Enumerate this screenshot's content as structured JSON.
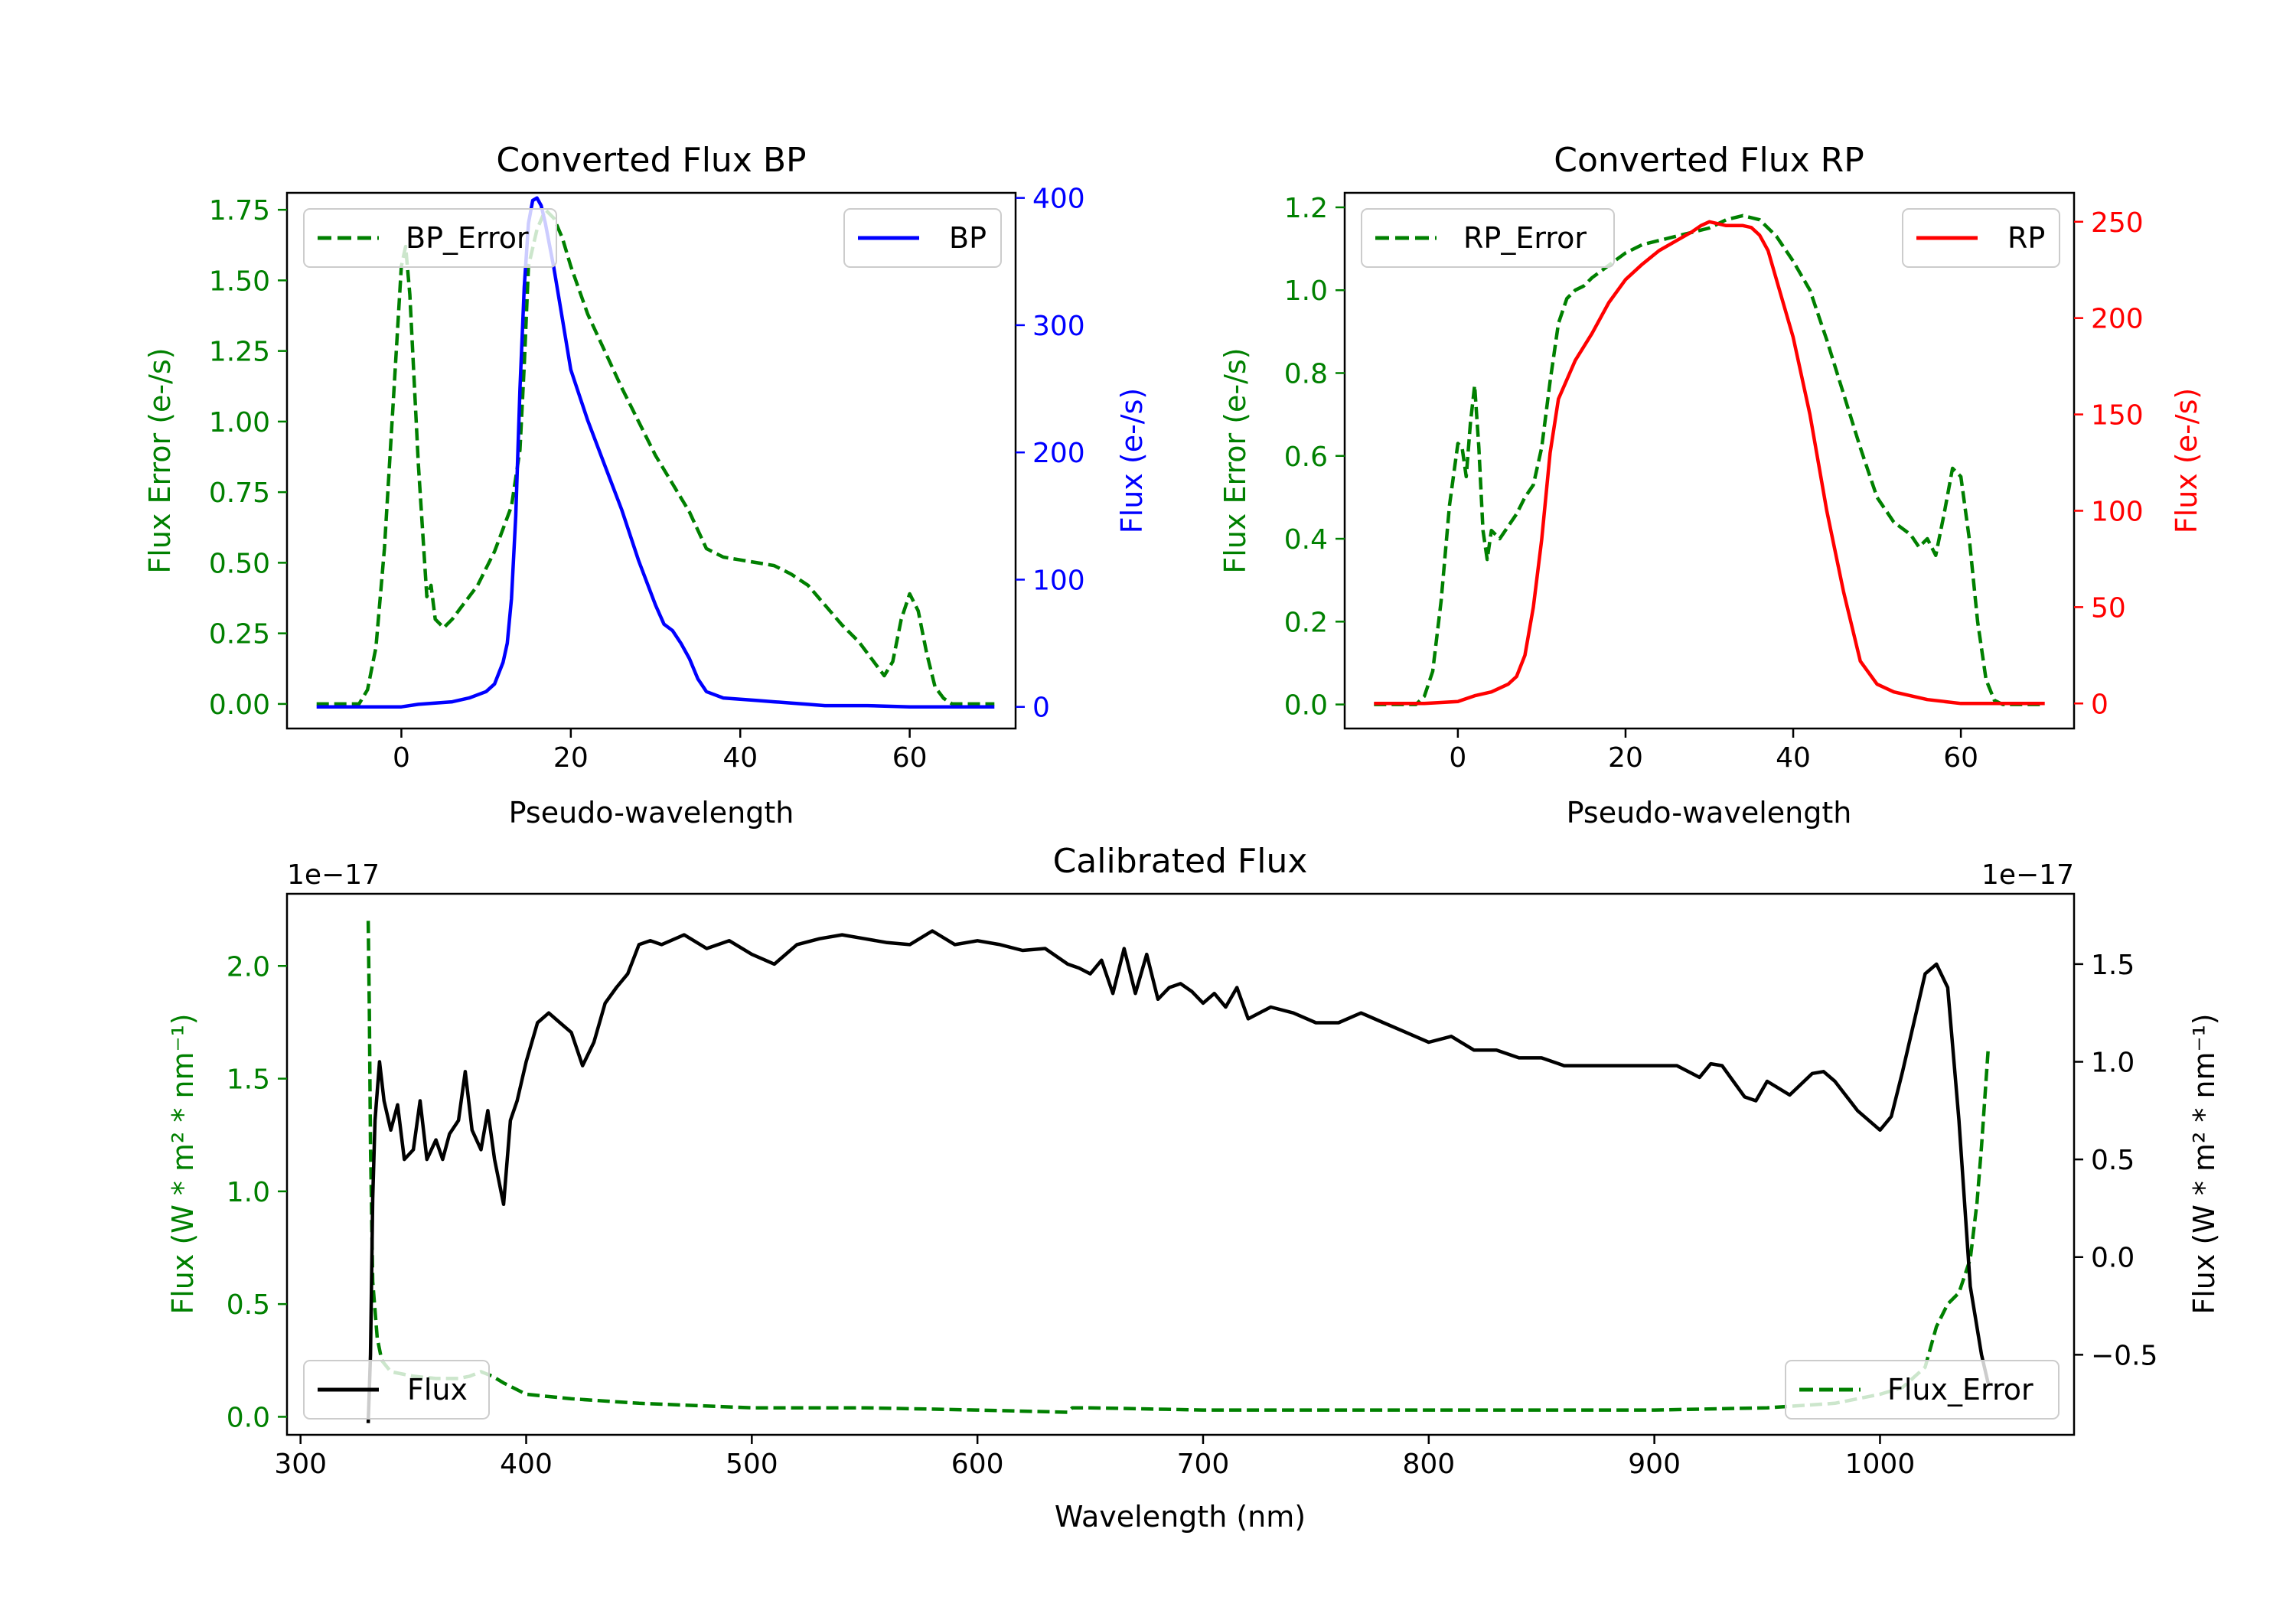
{
  "colors": {
    "green": "#008000",
    "blue": "#0000ff",
    "red": "#ff0000",
    "black": "#000000"
  },
  "chart_data": [
    {
      "id": "bp",
      "type": "line",
      "title": "Converted Flux BP",
      "xlabel": "Pseudo-wavelength",
      "ylabel_left": "Flux Error (e-/s)",
      "ylabel_right": "Flux (e-/s)",
      "xlim": [
        -13.5,
        72.5
      ],
      "ylim_left": [
        -0.087,
        1.81
      ],
      "ylim_right": [
        -17,
        404
      ],
      "xticks": [
        0,
        20,
        40,
        60
      ],
      "xtick_labels": [
        "0",
        "20",
        "40",
        "60"
      ],
      "yticks_left": [
        0,
        0.25,
        0.5,
        0.75,
        1.0,
        1.25,
        1.5,
        1.75
      ],
      "ytick_labels_left": [
        "0.00",
        "0.25",
        "0.50",
        "0.75",
        "1.00",
        "1.25",
        "1.50",
        "1.75"
      ],
      "yticks_right": [
        0,
        100,
        200,
        300,
        400
      ],
      "ytick_labels_right": [
        "0",
        "100",
        "200",
        "300",
        "400"
      ],
      "legend_left": "BP_Error",
      "legend_right": "BP",
      "series": [
        {
          "name": "BP_Error",
          "axis": "left",
          "style": "dashed",
          "color": "#008000",
          "x": [
            -10,
            -5,
            -4,
            -3,
            -2,
            -1,
            0,
            0.5,
            1,
            2,
            3,
            3.5,
            4,
            5,
            6,
            7,
            8,
            9,
            10,
            11,
            12,
            13,
            14,
            14.5,
            15,
            16,
            17,
            18,
            19,
            20,
            22,
            24,
            26,
            28,
            30,
            32,
            34,
            36,
            38,
            40,
            42,
            44,
            46,
            48,
            50,
            52,
            54,
            55,
            56,
            57,
            58,
            59,
            60,
            61,
            62,
            63,
            64,
            65,
            66,
            70
          ],
          "y": [
            0.0,
            0.0,
            0.05,
            0.2,
            0.55,
            1.05,
            1.55,
            1.62,
            1.45,
            0.85,
            0.38,
            0.42,
            0.3,
            0.27,
            0.3,
            0.34,
            0.38,
            0.42,
            0.48,
            0.54,
            0.62,
            0.7,
            0.9,
            1.2,
            1.55,
            1.68,
            1.75,
            1.72,
            1.65,
            1.55,
            1.38,
            1.25,
            1.12,
            1.0,
            0.88,
            0.78,
            0.68,
            0.55,
            0.52,
            0.51,
            0.5,
            0.49,
            0.46,
            0.42,
            0.35,
            0.28,
            0.22,
            0.18,
            0.14,
            0.1,
            0.15,
            0.3,
            0.39,
            0.33,
            0.18,
            0.06,
            0.02,
            0.0,
            0.0,
            0.0
          ]
        },
        {
          "name": "BP",
          "axis": "right",
          "style": "solid",
          "color": "#0000ff",
          "x": [
            -10,
            0,
            2,
            4,
            6,
            8,
            10,
            11,
            12,
            12.5,
            13,
            13.5,
            14,
            14.5,
            15,
            15.5,
            16,
            16.5,
            17,
            18,
            19,
            20,
            21,
            22,
            24,
            26,
            28,
            30,
            31,
            32,
            33,
            34,
            35,
            36,
            38,
            40,
            42,
            44,
            46,
            48,
            50,
            55,
            60,
            65,
            70
          ],
          "y": [
            0,
            0,
            2,
            3,
            4,
            7,
            12,
            18,
            35,
            50,
            85,
            150,
            250,
            330,
            380,
            398,
            400,
            394,
            380,
            345,
            305,
            265,
            245,
            225,
            190,
            155,
            115,
            80,
            65,
            60,
            50,
            38,
            22,
            12,
            7,
            6,
            5,
            4,
            3,
            2,
            1,
            1,
            0,
            0,
            0
          ]
        }
      ]
    },
    {
      "id": "rp",
      "type": "line",
      "title": "Converted Flux RP",
      "xlabel": "Pseudo-wavelength",
      "ylabel_left": "Flux Error (e-/s)",
      "ylabel_right": "Flux (e-/s)",
      "xlim": [
        -13.5,
        73.5
      ],
      "ylim_left": [
        -0.058,
        1.235
      ],
      "ylim_right": [
        -13,
        265
      ],
      "xticks": [
        0,
        20,
        40,
        60
      ],
      "xtick_labels": [
        "0",
        "20",
        "40",
        "60"
      ],
      "yticks_left": [
        0,
        0.2,
        0.4,
        0.6,
        0.8,
        1.0,
        1.2
      ],
      "ytick_labels_left": [
        "0.0",
        "0.2",
        "0.4",
        "0.6",
        "0.8",
        "1.0",
        "1.2"
      ],
      "yticks_right": [
        0,
        50,
        100,
        150,
        200,
        250
      ],
      "ytick_labels_right": [
        "0",
        "50",
        "100",
        "150",
        "200",
        "250"
      ],
      "legend_left": "RP_Error",
      "legend_right": "RP",
      "series": [
        {
          "name": "RP_Error",
          "axis": "left",
          "style": "dashed",
          "color": "#008000",
          "x": [
            -10,
            -5,
            -4,
            -3,
            -2,
            -1,
            0,
            0.5,
            1,
            1.5,
            2,
            2.5,
            3,
            3.5,
            4,
            5,
            6,
            7,
            8,
            9,
            10,
            11,
            12,
            13,
            14,
            15,
            16,
            18,
            20,
            22,
            24,
            26,
            28,
            30,
            32,
            34,
            36,
            38,
            40,
            42,
            44,
            46,
            48,
            50,
            52,
            54,
            55,
            56,
            57,
            58,
            59,
            60,
            61,
            62,
            63,
            64,
            65,
            70
          ],
          "y": [
            0.0,
            0.0,
            0.02,
            0.08,
            0.25,
            0.48,
            0.63,
            0.62,
            0.55,
            0.68,
            0.77,
            0.62,
            0.42,
            0.35,
            0.42,
            0.4,
            0.43,
            0.46,
            0.5,
            0.53,
            0.62,
            0.78,
            0.92,
            0.98,
            1.0,
            1.01,
            1.03,
            1.06,
            1.09,
            1.11,
            1.12,
            1.13,
            1.14,
            1.15,
            1.17,
            1.18,
            1.17,
            1.13,
            1.07,
            1.0,
            0.88,
            0.75,
            0.62,
            0.5,
            0.44,
            0.41,
            0.38,
            0.4,
            0.36,
            0.46,
            0.57,
            0.55,
            0.4,
            0.2,
            0.06,
            0.01,
            0.0,
            0.0
          ]
        },
        {
          "name": "RP",
          "axis": "right",
          "style": "solid",
          "color": "#ff0000",
          "x": [
            -10,
            -4,
            0,
            2,
            4,
            6,
            7,
            8,
            9,
            10,
            11,
            12,
            13,
            14,
            16,
            18,
            20,
            22,
            24,
            26,
            28,
            29,
            30,
            31,
            32,
            33,
            34,
            35,
            36,
            37,
            38,
            40,
            42,
            44,
            46,
            48,
            50,
            52,
            54,
            56,
            58,
            60,
            62,
            70
          ],
          "y": [
            0,
            0,
            1,
            4,
            6,
            10,
            14,
            25,
            50,
            85,
            130,
            158,
            168,
            178,
            192,
            208,
            220,
            228,
            235,
            240,
            245,
            248,
            250,
            249,
            248,
            248,
            248,
            247,
            243,
            235,
            220,
            190,
            150,
            100,
            58,
            22,
            10,
            6,
            4,
            2,
            1,
            0,
            0,
            0
          ]
        }
      ]
    },
    {
      "id": "cal",
      "type": "line",
      "title": "Calibrated Flux",
      "xlabel": "Wavelength (nm)",
      "ylabel_left": "Flux (W * m² * nm⁻¹)",
      "ylabel_right": "Flux (W * m² * nm⁻¹)",
      "offset_left": "1e−17",
      "offset_right": "1e−17",
      "xlim": [
        294,
        1086
      ],
      "ylim_left": [
        -0.08,
        2.32
      ],
      "ylim_right": [
        -0.91,
        1.86
      ],
      "xticks": [
        300,
        400,
        500,
        600,
        700,
        800,
        900,
        1000
      ],
      "xtick_labels": [
        "300",
        "400",
        "500",
        "600",
        "700",
        "800",
        "900",
        "1000"
      ],
      "yticks_left": [
        0,
        0.5,
        1.0,
        1.5,
        2.0
      ],
      "ytick_labels_left": [
        "0.0",
        "0.5",
        "1.0",
        "1.5",
        "2.0"
      ],
      "yticks_right": [
        -0.5,
        0,
        0.5,
        1.0,
        1.5
      ],
      "ytick_labels_right": [
        "−0.5",
        "0.0",
        "0.5",
        "1.0",
        "1.5"
      ],
      "legend_left": "Flux",
      "legend_right": "Flux_Error",
      "series": [
        {
          "name": "Flux_Error",
          "axis": "left",
          "style": "dashed",
          "color": "#008000",
          "x": [
            330,
            330.5,
            331,
            332,
            334,
            336,
            340,
            350,
            360,
            370,
            375,
            380,
            385,
            390,
            400,
            420,
            450,
            500,
            550,
            600,
            640,
            642,
            650,
            700,
            800,
            900,
            950,
            980,
            1000,
            1010,
            1020,
            1025,
            1030,
            1035,
            1040,
            1043,
            1045,
            1048
          ],
          "y": [
            2.2,
            1.8,
            1.2,
            0.6,
            0.35,
            0.25,
            0.2,
            0.18,
            0.17,
            0.17,
            0.18,
            0.2,
            0.18,
            0.15,
            0.1,
            0.08,
            0.06,
            0.04,
            0.04,
            0.03,
            0.02,
            0.04,
            0.04,
            0.03,
            0.03,
            0.03,
            0.04,
            0.06,
            0.1,
            0.13,
            0.22,
            0.4,
            0.5,
            0.55,
            0.7,
            0.95,
            1.2,
            1.64
          ]
        },
        {
          "name": "Flux",
          "axis": "right",
          "style": "solid",
          "color": "#000000",
          "x": [
            330,
            331,
            332,
            333,
            335,
            337,
            340,
            343,
            346,
            350,
            353,
            356,
            360,
            363,
            366,
            370,
            373,
            376,
            380,
            383,
            386,
            390,
            393,
            396,
            400,
            405,
            410,
            415,
            420,
            425,
            430,
            435,
            440,
            445,
            450,
            455,
            460,
            470,
            480,
            490,
            500,
            510,
            520,
            530,
            540,
            550,
            560,
            570,
            580,
            590,
            600,
            610,
            620,
            630,
            640,
            645,
            650,
            655,
            660,
            665,
            670,
            675,
            680,
            685,
            690,
            695,
            700,
            705,
            710,
            715,
            720,
            730,
            740,
            750,
            760,
            770,
            780,
            790,
            800,
            810,
            820,
            830,
            840,
            850,
            860,
            870,
            880,
            890,
            900,
            910,
            920,
            925,
            930,
            935,
            940,
            945,
            950,
            960,
            970,
            975,
            980,
            990,
            1000,
            1005,
            1010,
            1015,
            1020,
            1025,
            1030,
            1035,
            1040,
            1045,
            1048
          ],
          "y": [
            -0.85,
            -0.5,
            0.3,
            0.7,
            1.0,
            0.8,
            0.65,
            0.78,
            0.5,
            0.55,
            0.8,
            0.5,
            0.6,
            0.5,
            0.63,
            0.7,
            0.95,
            0.65,
            0.55,
            0.75,
            0.5,
            0.27,
            0.7,
            0.8,
            1.0,
            1.2,
            1.25,
            1.2,
            1.15,
            0.98,
            1.1,
            1.3,
            1.38,
            1.45,
            1.6,
            1.62,
            1.6,
            1.65,
            1.58,
            1.62,
            1.55,
            1.5,
            1.6,
            1.63,
            1.65,
            1.63,
            1.61,
            1.6,
            1.67,
            1.6,
            1.62,
            1.6,
            1.57,
            1.58,
            1.5,
            1.48,
            1.45,
            1.52,
            1.35,
            1.58,
            1.35,
            1.55,
            1.32,
            1.38,
            1.4,
            1.36,
            1.3,
            1.35,
            1.28,
            1.38,
            1.22,
            1.28,
            1.25,
            1.2,
            1.2,
            1.25,
            1.2,
            1.15,
            1.1,
            1.13,
            1.06,
            1.06,
            1.02,
            1.02,
            0.98,
            0.98,
            0.98,
            0.98,
            0.98,
            0.98,
            0.92,
            0.99,
            0.98,
            0.9,
            0.82,
            0.8,
            0.9,
            0.83,
            0.94,
            0.95,
            0.9,
            0.75,
            0.65,
            0.72,
            0.95,
            1.2,
            1.45,
            1.5,
            1.38,
            0.7,
            -0.15,
            -0.5,
            -0.65
          ]
        }
      ]
    }
  ]
}
